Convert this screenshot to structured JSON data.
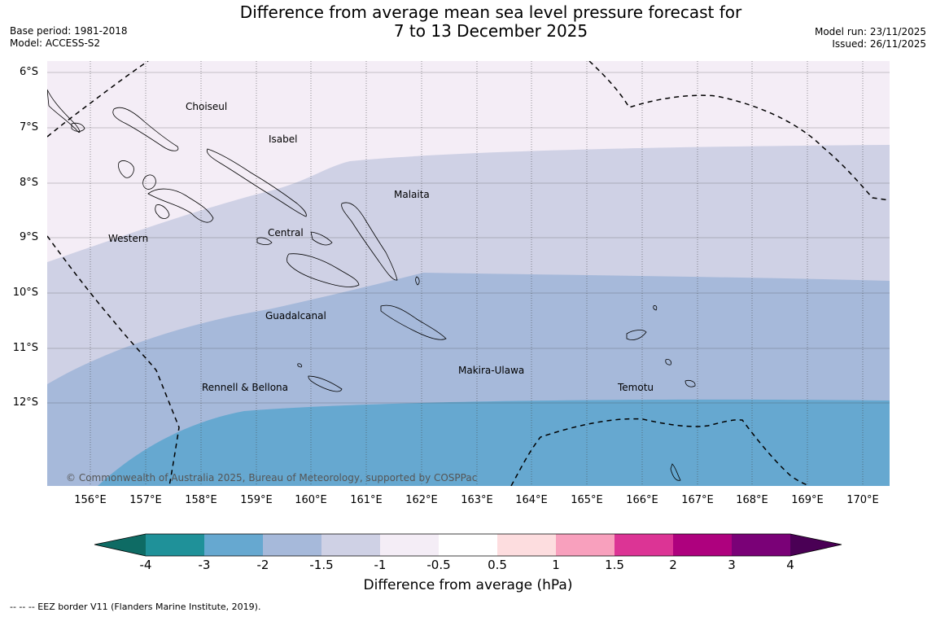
{
  "header": {
    "title_line1": "Difference from average mean sea level pressure forecast for",
    "title_line2": "7 to 13 December 2025",
    "base_period": "Base period: 1981-2018",
    "model": "Model: ACCESS-S2",
    "model_run": "Model run: 23/11/2025",
    "issued": "Issued: 26/11/2025"
  },
  "map": {
    "lat_labels": [
      "6°S",
      "7°S",
      "8°S",
      "9°S",
      "10°S",
      "11°S",
      "12°S"
    ],
    "lon_labels": [
      "156°E",
      "157°E",
      "158°E",
      "159°E",
      "160°E",
      "161°E",
      "162°E",
      "163°E",
      "164°E",
      "165°E",
      "166°E",
      "167°E",
      "168°E",
      "169°E",
      "170°E"
    ],
    "regions": {
      "choiseul": "Choiseul",
      "isabel": "Isabel",
      "malaita": "Malaita",
      "central": "Central",
      "western": "Western",
      "guadalcanal": "Guadalcanal",
      "makira_ulawa": "Makira-Ulawa",
      "temotu": "Temotu",
      "rennell_bellona": "Rennell & Bellona"
    },
    "copyright": "© Commonwealth of Australia 2025, Bureau of Meteorology, supported by COSPPac"
  },
  "colorbar": {
    "ticks": [
      "-4",
      "-3",
      "-2",
      "-1.5",
      "-1",
      "-0.5",
      "0.5",
      "1",
      "1.5",
      "2",
      "3",
      "4"
    ],
    "colors": [
      "#1f9199",
      "#66a8d0",
      "#a6b9da",
      "#cfd1e5",
      "#f4edf6",
      "#ffffff",
      "#fddddf",
      "#f8a0bd",
      "#dc3495",
      "#ae017e",
      "#7a0177"
    ],
    "under_color": "#0e6b64",
    "over_color": "#4a0055",
    "label": "Difference from average (hPa)"
  },
  "footnote": "--  --  -- EEZ border V11 (Flanders Marine Institute, 2019)."
}
